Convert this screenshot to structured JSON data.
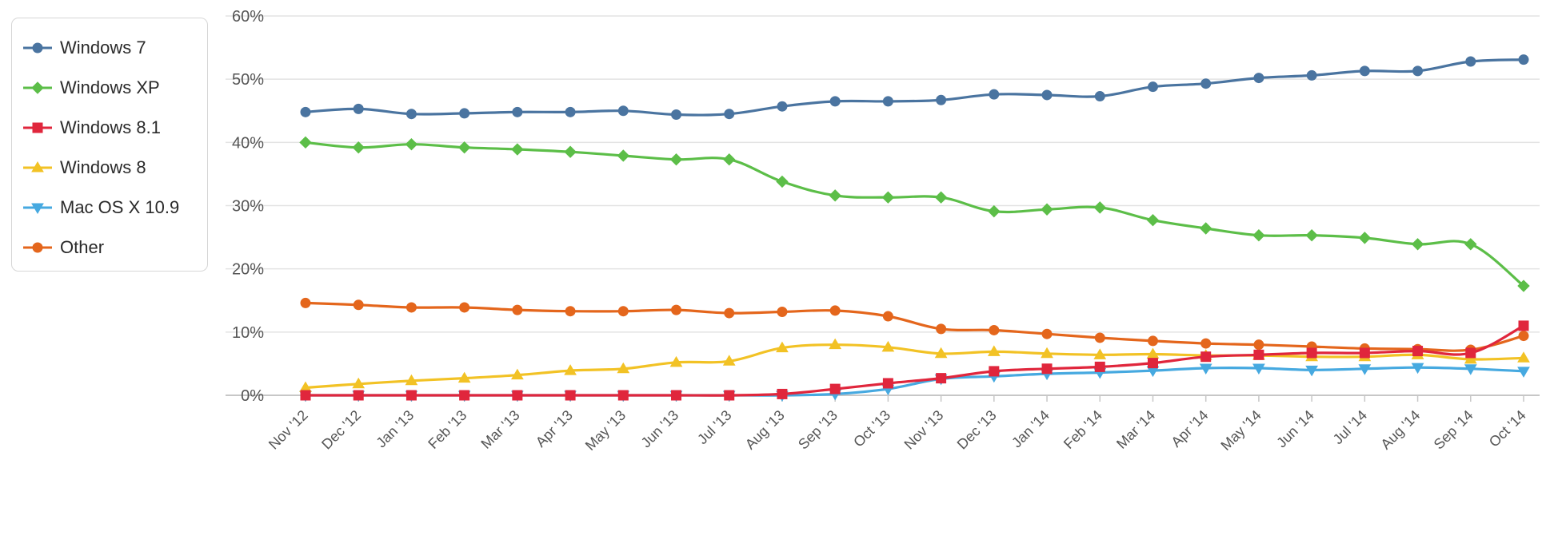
{
  "chart_data": {
    "type": "line",
    "title": "",
    "xlabel": "",
    "ylabel": "",
    "ylim": [
      0,
      60
    ],
    "y_ticks": [
      "0%",
      "10%",
      "20%",
      "30%",
      "40%",
      "50%",
      "60%"
    ],
    "grid": true,
    "legend": "top-left",
    "categories": [
      "Nov '12",
      "Dec '12",
      "Jan '13",
      "Feb '13",
      "Mar '13",
      "Apr '13",
      "May '13",
      "Jun '13",
      "Jul '13",
      "Aug '13",
      "Sep '13",
      "Oct '13",
      "Nov '13",
      "Dec '13",
      "Jan '14",
      "Feb '14",
      "Mar '14",
      "Apr '14",
      "May '14",
      "Jun '14",
      "Jul '14",
      "Aug '14",
      "Sep '14",
      "Oct '14"
    ],
    "series": [
      {
        "name": "Windows 7",
        "color": "#4a74a0",
        "marker": "circle",
        "values": [
          44.8,
          45.3,
          44.5,
          44.6,
          44.8,
          44.8,
          45.0,
          44.4,
          44.5,
          45.7,
          46.5,
          46.5,
          46.7,
          47.6,
          47.5,
          47.3,
          48.8,
          49.3,
          50.2,
          50.6,
          51.3,
          51.3,
          52.8,
          53.1
        ]
      },
      {
        "name": "Windows XP",
        "color": "#5cbe48",
        "marker": "diamond",
        "values": [
          40.0,
          39.2,
          39.7,
          39.2,
          38.9,
          38.5,
          37.9,
          37.3,
          37.3,
          33.8,
          31.6,
          31.3,
          31.3,
          29.1,
          29.4,
          29.7,
          27.7,
          26.4,
          25.3,
          25.3,
          24.9,
          23.9,
          23.9,
          17.3
        ]
      },
      {
        "name": "Windows 8.1",
        "color": "#e0263c",
        "marker": "square",
        "values": [
          0,
          0,
          0,
          0,
          0,
          0,
          0,
          0,
          0,
          0.2,
          1.0,
          1.9,
          2.7,
          3.8,
          4.2,
          4.5,
          5.1,
          6.1,
          6.4,
          6.7,
          6.7,
          7.0,
          6.7,
          11.0
        ]
      },
      {
        "name": "Windows 8",
        "color": "#f2c225",
        "marker": "triangle-up",
        "values": [
          1.2,
          1.8,
          2.3,
          2.7,
          3.2,
          3.9,
          4.2,
          5.2,
          5.4,
          7.5,
          8.0,
          7.6,
          6.6,
          6.9,
          6.6,
          6.4,
          6.5,
          6.3,
          6.3,
          6.1,
          6.1,
          6.4,
          5.7,
          5.9
        ]
      },
      {
        "name": "Mac OS X 10.9",
        "color": "#46a9e0",
        "marker": "triangle-down",
        "values": [
          0,
          0,
          0,
          0,
          0,
          0,
          0,
          0,
          0,
          0,
          0.2,
          1.0,
          2.6,
          3.0,
          3.4,
          3.6,
          3.9,
          4.3,
          4.3,
          4.0,
          4.2,
          4.4,
          4.2,
          3.8
        ]
      },
      {
        "name": "Other",
        "color": "#e4661c",
        "marker": "circle",
        "values": [
          14.6,
          14.3,
          13.9,
          13.9,
          13.5,
          13.3,
          13.3,
          13.5,
          13.0,
          13.2,
          13.4,
          12.5,
          10.5,
          10.3,
          9.7,
          9.1,
          8.6,
          8.2,
          8.0,
          7.7,
          7.4,
          7.3,
          7.2,
          9.4
        ]
      }
    ]
  }
}
